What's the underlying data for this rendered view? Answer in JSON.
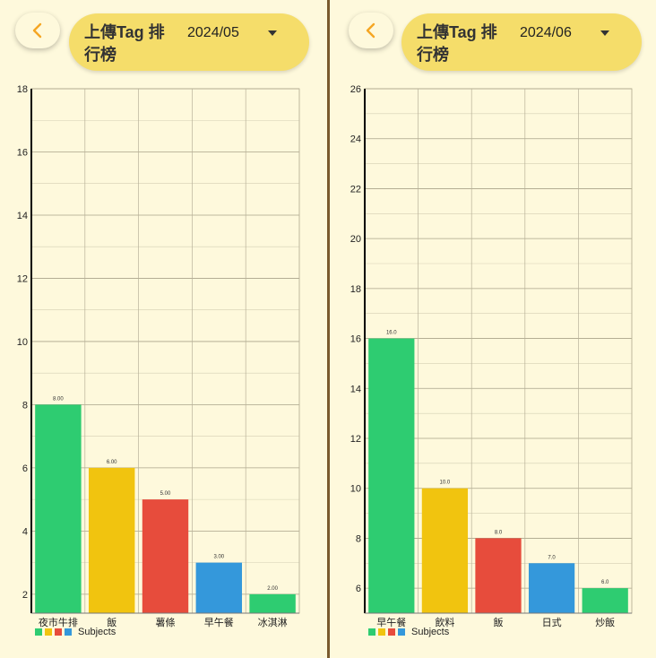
{
  "colors": {
    "green": "#2ecc71",
    "yellow": "#f1c40f",
    "red": "#e74c3c",
    "blue": "#3498db",
    "background": "#fef9dc",
    "header_pill": "#f5dd6a"
  },
  "icons": {
    "back": "chevron-left-icon",
    "dropdown": "caret-down-icon"
  },
  "left": {
    "header": {
      "title": "上傳Tag 排行榜",
      "month": "2024/05"
    },
    "legend": {
      "label": "Subjects"
    },
    "chart_data": {
      "type": "bar",
      "categories": [
        "夜市牛排",
        "飯",
        "薯條",
        "早午餐",
        "冰淇淋"
      ],
      "values": [
        8,
        6,
        5,
        3,
        2
      ],
      "value_labels": [
        "8.00",
        "6.00",
        "5.00",
        "3.00",
        "2.00"
      ],
      "colors": [
        "#2ecc71",
        "#f1c40f",
        "#e74c3c",
        "#3498db",
        "#2ecc71"
      ],
      "yticks": [
        2,
        4,
        6,
        8,
        10,
        12,
        14,
        16,
        18
      ],
      "ylim": [
        1.4,
        18
      ],
      "legend": "bottom-left"
    }
  },
  "right": {
    "header": {
      "title": "上傳Tag 排行榜",
      "month": "2024/06"
    },
    "legend": {
      "label": "Subjects"
    },
    "chart_data": {
      "type": "bar",
      "categories": [
        "早午餐",
        "飲料",
        "飯",
        "日式",
        "炒飯"
      ],
      "values": [
        16,
        10,
        8,
        7,
        6
      ],
      "value_labels": [
        "16.0",
        "10.0",
        "8.0",
        "7.0",
        "6.0"
      ],
      "colors": [
        "#2ecc71",
        "#f1c40f",
        "#e74c3c",
        "#3498db",
        "#2ecc71"
      ],
      "yticks": [
        6,
        8,
        10,
        12,
        14,
        16,
        18,
        20,
        22,
        24,
        26
      ],
      "ylim": [
        5,
        26
      ],
      "legend": "bottom-left"
    }
  }
}
